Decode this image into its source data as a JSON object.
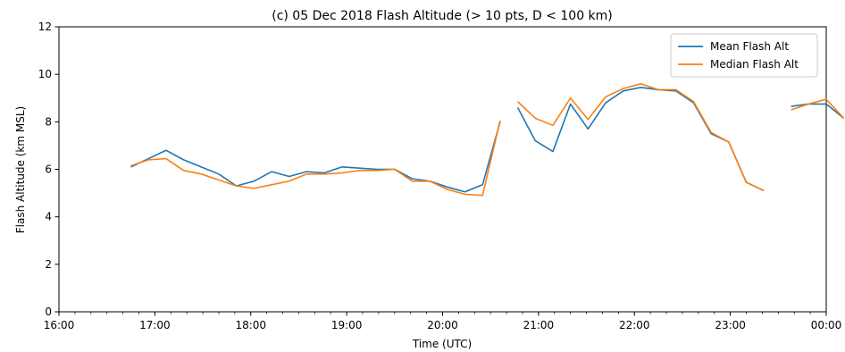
{
  "chart_data": {
    "type": "line",
    "title": "(c) 05 Dec 2018 Flash Altitude (> 10 pts, D < 100 km)",
    "xlabel": "Time (UTC)",
    "ylabel": "Flash Altitude (km MSL)",
    "xlim": [
      "16:00",
      "00:00"
    ],
    "ylim": [
      0,
      12
    ],
    "x_ticks": [
      "16:00",
      "17:00",
      "18:00",
      "19:00",
      "20:00",
      "21:00",
      "22:00",
      "23:00",
      "00:00"
    ],
    "y_ticks": [
      "0",
      "2",
      "4",
      "6",
      "8",
      "10",
      "12"
    ],
    "grid": false,
    "legend_position": "top-right",
    "series": [
      {
        "name": "Mean Flash Alt",
        "color": "#1f77b4",
        "segments": [
          [
            [
              "16:45",
              6.1
            ],
            [
              "16:56",
              6.45
            ],
            [
              "17:07",
              6.8
            ],
            [
              "17:18",
              6.4
            ],
            [
              "17:29",
              6.1
            ],
            [
              "17:40",
              5.8
            ],
            [
              "17:51",
              5.3
            ],
            [
              "18:02",
              5.5
            ],
            [
              "18:13",
              5.9
            ],
            [
              "18:24",
              5.7
            ],
            [
              "18:35",
              5.9
            ],
            [
              "18:46",
              5.85
            ],
            [
              "18:57",
              6.1
            ],
            [
              "19:08",
              6.05
            ],
            [
              "19:19",
              6.0
            ],
            [
              "19:30",
              6.0
            ],
            [
              "19:41",
              5.6
            ],
            [
              "19:52",
              5.5
            ],
            [
              "20:03",
              5.25
            ],
            [
              "20:14",
              5.05
            ],
            [
              "20:25",
              5.35
            ],
            [
              "20:36",
              8.0
            ]
          ],
          [
            [
              "20:47",
              8.6
            ],
            [
              "20:58",
              7.2
            ],
            [
              "21:09",
              6.75
            ],
            [
              "21:20",
              8.75
            ],
            [
              "21:31",
              7.7
            ],
            [
              "21:42",
              8.8
            ],
            [
              "21:53",
              9.3
            ],
            [
              "22:04",
              9.45
            ],
            [
              "22:15",
              9.35
            ],
            [
              "22:26",
              9.3
            ],
            [
              "22:37",
              8.8
            ],
            [
              "22:48",
              7.5
            ],
            [
              "22:59",
              7.15
            ],
            [
              "23:10",
              5.45
            ],
            [
              "23:21",
              5.1
            ]
          ],
          [
            [
              "23:38",
              8.65
            ],
            [
              "23:49",
              8.75
            ],
            [
              "24:00",
              8.75
            ],
            [
              "24:11",
              8.15
            ]
          ]
        ]
      },
      {
        "name": "Median Flash Alt",
        "color": "#ff7f0e",
        "segments": [
          [
            [
              "16:45",
              6.15
            ],
            [
              "16:56",
              6.4
            ],
            [
              "17:07",
              6.45
            ],
            [
              "17:18",
              5.95
            ],
            [
              "17:29",
              5.8
            ],
            [
              "17:40",
              5.55
            ],
            [
              "17:51",
              5.3
            ],
            [
              "18:02",
              5.2
            ],
            [
              "18:13",
              5.35
            ],
            [
              "18:24",
              5.5
            ],
            [
              "18:35",
              5.8
            ],
            [
              "18:46",
              5.8
            ],
            [
              "18:57",
              5.85
            ],
            [
              "19:08",
              5.95
            ],
            [
              "19:19",
              5.95
            ],
            [
              "19:30",
              6.0
            ],
            [
              "19:41",
              5.5
            ],
            [
              "19:52",
              5.5
            ],
            [
              "20:03",
              5.15
            ],
            [
              "20:14",
              4.95
            ],
            [
              "20:25",
              4.9
            ],
            [
              "20:36",
              8.05
            ]
          ],
          [
            [
              "20:47",
              8.85
            ],
            [
              "20:58",
              8.15
            ],
            [
              "21:09",
              7.85
            ],
            [
              "21:20",
              9.0
            ],
            [
              "21:31",
              8.1
            ],
            [
              "21:42",
              9.05
            ],
            [
              "21:53",
              9.4
            ],
            [
              "22:04",
              9.6
            ],
            [
              "22:15",
              9.35
            ],
            [
              "22:26",
              9.35
            ],
            [
              "22:37",
              8.85
            ],
            [
              "22:48",
              7.55
            ],
            [
              "22:59",
              7.15
            ],
            [
              "23:10",
              5.45
            ],
            [
              "23:21",
              5.1
            ]
          ],
          [
            [
              "23:38",
              8.5
            ],
            [
              "23:49",
              8.75
            ],
            [
              "24:00",
              8.95
            ],
            [
              "24:11",
              8.15
            ]
          ]
        ]
      }
    ]
  }
}
